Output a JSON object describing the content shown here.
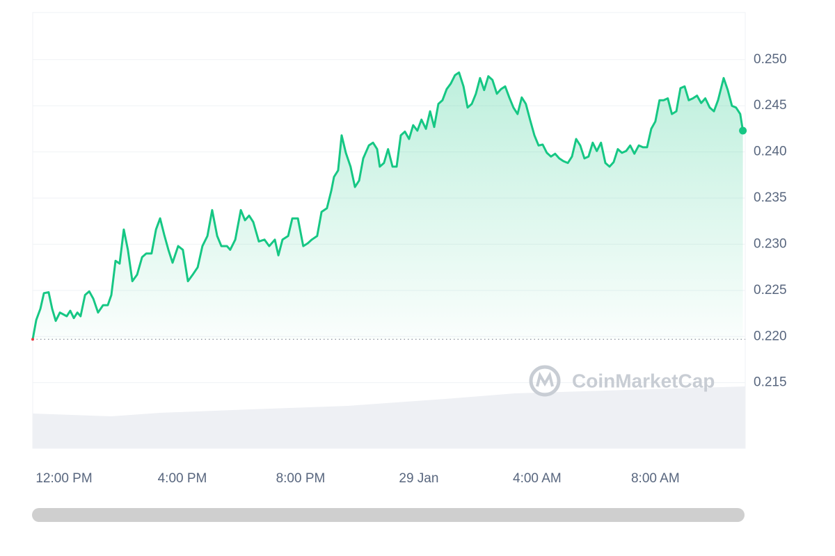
{
  "chart_data": {
    "type": "area-line",
    "watermark": "CoinMarketCap",
    "x": [
      10.94,
      11.06,
      11.2,
      11.32,
      11.48,
      11.6,
      11.72,
      11.86,
      12.09,
      12.21,
      12.33,
      12.45,
      12.56,
      12.71,
      12.85,
      12.99,
      13.15,
      13.32,
      13.48,
      13.6,
      13.74,
      13.88,
      14.02,
      14.16,
      14.31,
      14.47,
      14.64,
      14.78,
      14.96,
      15.11,
      15.25,
      15.39,
      15.53,
      15.67,
      15.86,
      16.02,
      16.19,
      16.35,
      16.52,
      16.68,
      16.85,
      17.01,
      17.18,
      17.32,
      17.51,
      17.62,
      17.79,
      17.98,
      18.12,
      18.26,
      18.4,
      18.59,
      18.78,
      18.94,
      19.13,
      19.25,
      19.39,
      19.58,
      19.72,
      19.91,
      20.09,
      20.24,
      20.38,
      20.56,
      20.71,
      20.89,
      21.04,
      21.13,
      21.27,
      21.39,
      21.53,
      21.69,
      21.84,
      21.98,
      22.12,
      22.31,
      22.45,
      22.59,
      22.68,
      22.82,
      22.96,
      23.11,
      23.25,
      23.39,
      23.53,
      23.67,
      23.81,
      23.95,
      24.09,
      24.24,
      24.38,
      24.52,
      24.66,
      24.8,
      24.94,
      25.08,
      25.22,
      25.36,
      25.51,
      25.65,
      25.79,
      25.93,
      26.07,
      26.21,
      26.35,
      26.49,
      26.64,
      26.78,
      26.92,
      27.06,
      27.2,
      27.34,
      27.48,
      27.62,
      27.76,
      27.91,
      28.05,
      28.19,
      28.33,
      28.47,
      28.61,
      28.75,
      28.89,
      29.04,
      29.18,
      29.32,
      29.46,
      29.6,
      29.74,
      29.88,
      30.02,
      30.16,
      30.31,
      30.45,
      30.59,
      30.73,
      30.87,
      31.01,
      31.15,
      31.29,
      31.44,
      31.58,
      31.72,
      31.86,
      32.0,
      32.14,
      32.28,
      32.42,
      32.56,
      32.71,
      32.85,
      32.99,
      33.13,
      33.27,
      33.41,
      33.55,
      33.69,
      33.84,
      33.98,
      34.12,
      34.31,
      34.45,
      34.59,
      34.73,
      34.87,
      34.96
    ],
    "values": [
      0.2197,
      0.2218,
      0.223,
      0.2247,
      0.2248,
      0.223,
      0.2217,
      0.2226,
      0.2222,
      0.2228,
      0.222,
      0.2226,
      0.2222,
      0.2245,
      0.2249,
      0.2241,
      0.2226,
      0.2234,
      0.2234,
      0.2245,
      0.2282,
      0.2279,
      0.2316,
      0.2294,
      0.226,
      0.2267,
      0.2286,
      0.229,
      0.229,
      0.2316,
      0.2328,
      0.231,
      0.2294,
      0.228,
      0.2298,
      0.2294,
      0.226,
      0.2267,
      0.2275,
      0.2298,
      0.2309,
      0.2337,
      0.2309,
      0.2298,
      0.2298,
      0.2294,
      0.2305,
      0.2337,
      0.2326,
      0.2331,
      0.2324,
      0.2303,
      0.2305,
      0.2298,
      0.2305,
      0.2288,
      0.2305,
      0.2309,
      0.2328,
      0.2328,
      0.2298,
      0.2301,
      0.2305,
      0.2309,
      0.2335,
      0.2339,
      0.2358,
      0.2373,
      0.238,
      0.2418,
      0.2399,
      0.2384,
      0.2362,
      0.2369,
      0.2393,
      0.2407,
      0.241,
      0.2403,
      0.2384,
      0.2388,
      0.2403,
      0.2384,
      0.2384,
      0.2418,
      0.2422,
      0.2414,
      0.2429,
      0.2423,
      0.2435,
      0.2425,
      0.2444,
      0.2427,
      0.2452,
      0.2456,
      0.2468,
      0.2474,
      0.2483,
      0.2486,
      0.2471,
      0.2448,
      0.2452,
      0.2463,
      0.248,
      0.2467,
      0.2482,
      0.2478,
      0.2463,
      0.2468,
      0.2471,
      0.2459,
      0.2448,
      0.2441,
      0.2459,
      0.2452,
      0.2435,
      0.2418,
      0.2407,
      0.2408,
      0.2399,
      0.2395,
      0.2398,
      0.2393,
      0.239,
      0.2388,
      0.2395,
      0.2414,
      0.2407,
      0.2393,
      0.2395,
      0.241,
      0.2401,
      0.241,
      0.2388,
      0.2384,
      0.2389,
      0.2403,
      0.2399,
      0.2401,
      0.2407,
      0.2398,
      0.2407,
      0.2405,
      0.2405,
      0.2425,
      0.2433,
      0.2456,
      0.2456,
      0.2458,
      0.2441,
      0.2444,
      0.2469,
      0.2471,
      0.2456,
      0.2458,
      0.2461,
      0.2453,
      0.2458,
      0.2448,
      0.2444,
      0.2456,
      0.248,
      0.2467,
      0.245,
      0.2448,
      0.2441,
      0.2423
    ],
    "color": "#16c784",
    "xlim": [
      10.94,
      35.04
    ],
    "xticks": [
      {
        "value": 12,
        "label": "12:00 PM"
      },
      {
        "value": 16,
        "label": "4:00 PM"
      },
      {
        "value": 20,
        "label": "8:00 PM"
      },
      {
        "value": 24,
        "label": "29 Jan"
      },
      {
        "value": 28,
        "label": "4:00 AM"
      },
      {
        "value": 32,
        "label": "8:00 AM"
      }
    ],
    "ylim": [
      0.2079,
      0.2551
    ],
    "yticks": [
      {
        "value": 0.215,
        "label": "0.215"
      },
      {
        "value": 0.22,
        "label": "0.220"
      },
      {
        "value": 0.225,
        "label": "0.225"
      },
      {
        "value": 0.23,
        "label": "0.230"
      },
      {
        "value": 0.235,
        "label": "0.235"
      },
      {
        "value": 0.24,
        "label": "0.240"
      },
      {
        "value": 0.245,
        "label": "0.245"
      },
      {
        "value": 0.25,
        "label": "0.250"
      }
    ],
    "grid": true
  }
}
